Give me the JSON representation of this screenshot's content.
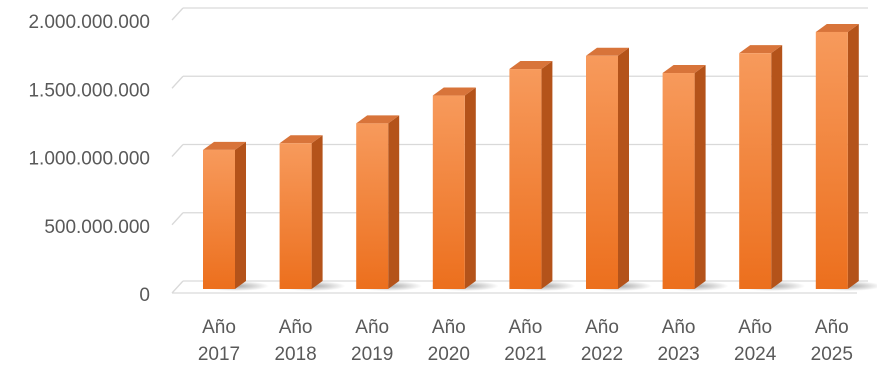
{
  "chart_data": {
    "type": "bar",
    "categories": [
      [
        "Año",
        "2017"
      ],
      [
        "Año",
        "2018"
      ],
      [
        "Año",
        "2019"
      ],
      [
        "Año",
        "2020"
      ],
      [
        "Año",
        "2021"
      ],
      [
        "Año",
        "2022"
      ],
      [
        "Año",
        "2023"
      ],
      [
        "Año",
        "2024"
      ],
      [
        "Año",
        "2025"
      ]
    ],
    "values": [
      1050000000,
      1100000000,
      1250000000,
      1460000000,
      1660000000,
      1760000000,
      1630000000,
      1780000000,
      1940000000
    ],
    "y_ticks": [
      {
        "value": 0,
        "label": "0"
      },
      {
        "value": 500000000,
        "label": "500.000.000"
      },
      {
        "value": 1000000000,
        "label": "1.000.000.000"
      },
      {
        "value": 1500000000,
        "label": "1.500.000.000"
      },
      {
        "value": 2000000000,
        "label": "2.000.000.000"
      }
    ],
    "ylim": [
      0,
      2000000000
    ],
    "grid": true,
    "legend": "none",
    "title": "",
    "xlabel": "",
    "ylabel": "",
    "colors": {
      "bar_front_top": "#f79a5c",
      "bar_front_bottom": "#ec6f1d",
      "bar_side": "#b4531a",
      "bar_top": "#d8743a",
      "grid": "#d9d9d9",
      "text": "#595959"
    }
  }
}
